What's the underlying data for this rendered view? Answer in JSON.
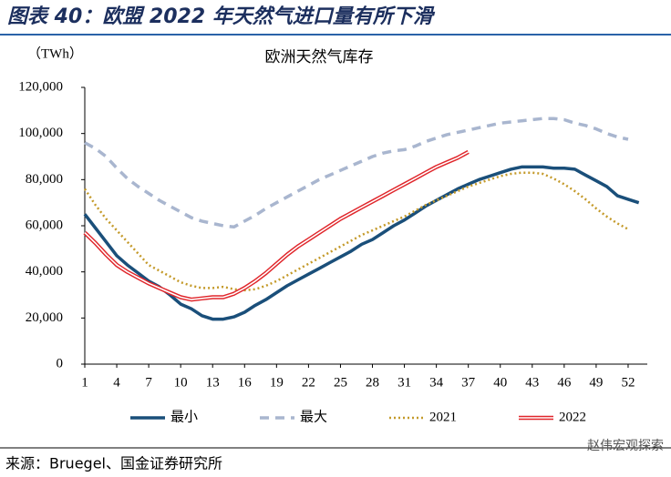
{
  "chart_data": {
    "type": "line",
    "figure_title": "图表 40：欧盟 2022 年天然气进口量有所下滑",
    "title": "欧洲天然气库存",
    "y_label": "（TWh）",
    "source": "来源：Bruegel、国金证券研究所",
    "watermark": "赵伟宏观探索",
    "x": [
      1,
      2,
      3,
      4,
      5,
      6,
      7,
      8,
      9,
      10,
      11,
      12,
      13,
      14,
      15,
      16,
      17,
      18,
      19,
      20,
      21,
      22,
      23,
      24,
      25,
      26,
      27,
      28,
      29,
      30,
      31,
      32,
      33,
      34,
      35,
      36,
      37,
      38,
      39,
      40,
      41,
      42,
      43,
      44,
      45,
      46,
      47,
      48,
      49,
      50,
      51,
      52,
      53
    ],
    "xlim": [
      1,
      53.8
    ],
    "xticks": [
      1,
      4,
      7,
      10,
      13,
      16,
      19,
      22,
      25,
      28,
      31,
      34,
      37,
      40,
      43,
      46,
      49,
      52
    ],
    "ylim": [
      0,
      120000
    ],
    "yticks": [
      0,
      {
        "value": 20000,
        "label": "20,000"
      },
      {
        "value": 40000,
        "label": "40,000"
      },
      {
        "value": 60000,
        "label": "60,000"
      },
      {
        "value": 80000,
        "label": "80,000"
      },
      {
        "value": 100000,
        "label": "100,000"
      },
      {
        "value": 120000,
        "label": "120,000"
      }
    ],
    "grid": false,
    "legend": "bottom",
    "series": [
      {
        "name": "最小",
        "color": "#1a4f7a",
        "style": "solid",
        "values": [
          65000,
          59000,
          53000,
          47000,
          43000,
          39500,
          36000,
          33500,
          30000,
          26000,
          24000,
          21000,
          19500,
          19500,
          20500,
          22500,
          25500,
          28000,
          31000,
          34000,
          36500,
          39000,
          41500,
          44000,
          46500,
          49000,
          52000,
          54000,
          57000,
          60000,
          62500,
          65500,
          68500,
          71000,
          73500,
          76000,
          78000,
          80000,
          81500,
          83000,
          84500,
          85500,
          85500,
          85500,
          85000,
          85000,
          84500,
          82000,
          79500,
          77000,
          73000,
          71500,
          70000
        ]
      },
      {
        "name": "最大",
        "color": "#a9b6cf",
        "style": "dashed",
        "values": [
          96000,
          93500,
          90000,
          85000,
          80500,
          77000,
          74000,
          71000,
          68500,
          66000,
          63500,
          62000,
          61000,
          60000,
          59500,
          62000,
          64500,
          67500,
          70000,
          72500,
          75000,
          77500,
          80000,
          82000,
          84000,
          86000,
          88000,
          90000,
          91500,
          92500,
          93000,
          94500,
          96500,
          98000,
          99500,
          100500,
          101500,
          102500,
          103500,
          104500,
          105000,
          105500,
          106000,
          106500,
          106500,
          106000,
          104500,
          103500,
          102000,
          100000,
          98500,
          97500,
          null
        ]
      },
      {
        "name": "2021",
        "color": "#c49a2a",
        "style": "dotted",
        "values": [
          76000,
          69000,
          63000,
          58000,
          53000,
          48000,
          43000,
          40500,
          38000,
          35500,
          34000,
          33000,
          33000,
          33500,
          32500,
          32000,
          32500,
          34000,
          36000,
          38500,
          41000,
          43500,
          46000,
          48500,
          51000,
          53500,
          56000,
          58000,
          60000,
          62000,
          64000,
          66500,
          69000,
          71000,
          73000,
          75000,
          77000,
          78500,
          80000,
          81500,
          82500,
          83000,
          83000,
          82500,
          80500,
          78000,
          75000,
          71500,
          67500,
          64000,
          61000,
          58500,
          null
        ]
      },
      {
        "name": "2022",
        "color": "#e0262b",
        "style": "double",
        "values": [
          57000,
          52500,
          47500,
          43000,
          40000,
          37500,
          35000,
          33000,
          31000,
          29000,
          28000,
          28500,
          29000,
          29000,
          30500,
          33000,
          36000,
          39500,
          43500,
          47500,
          51000,
          54000,
          57000,
          60000,
          63000,
          65500,
          68000,
          70500,
          73000,
          75500,
          78000,
          80500,
          83000,
          85500,
          87500,
          89500,
          92000,
          null,
          null,
          null,
          null,
          null,
          null,
          null,
          null,
          null,
          null,
          null,
          null,
          null,
          null,
          null,
          null
        ]
      }
    ]
  }
}
